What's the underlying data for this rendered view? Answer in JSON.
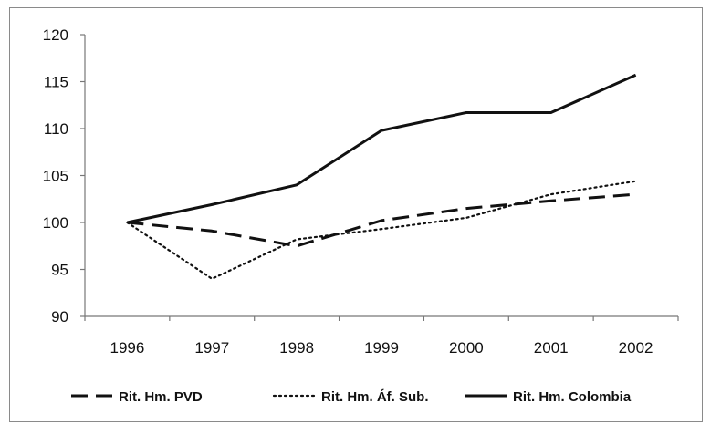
{
  "chart_data": {
    "type": "line",
    "title": "",
    "xlabel": "",
    "ylabel": "",
    "x": [
      "1996",
      "1997",
      "1998",
      "1999",
      "2000",
      "2001",
      "2002"
    ],
    "ylim": [
      90,
      120
    ],
    "yticks": [
      "90",
      "95",
      "100",
      "105",
      "110",
      "115",
      "120"
    ],
    "grid": false,
    "legend_position": "bottom",
    "series": [
      {
        "name": "Rit. Hm. PVD",
        "style": "dashed",
        "color": "#111111",
        "values": [
          100,
          99.1,
          97.5,
          100.2,
          101.5,
          102.3,
          103.0
        ]
      },
      {
        "name": "Rit. Hm. Áf. Sub.",
        "style": "dotted",
        "color": "#111111",
        "values": [
          100,
          94.0,
          98.2,
          99.3,
          100.5,
          103.0,
          104.4
        ]
      },
      {
        "name": "Rit. Hm. Colombia",
        "style": "solid",
        "color": "#111111",
        "values": [
          100,
          101.9,
          104.0,
          109.8,
          111.7,
          111.7,
          115.7
        ]
      }
    ]
  }
}
